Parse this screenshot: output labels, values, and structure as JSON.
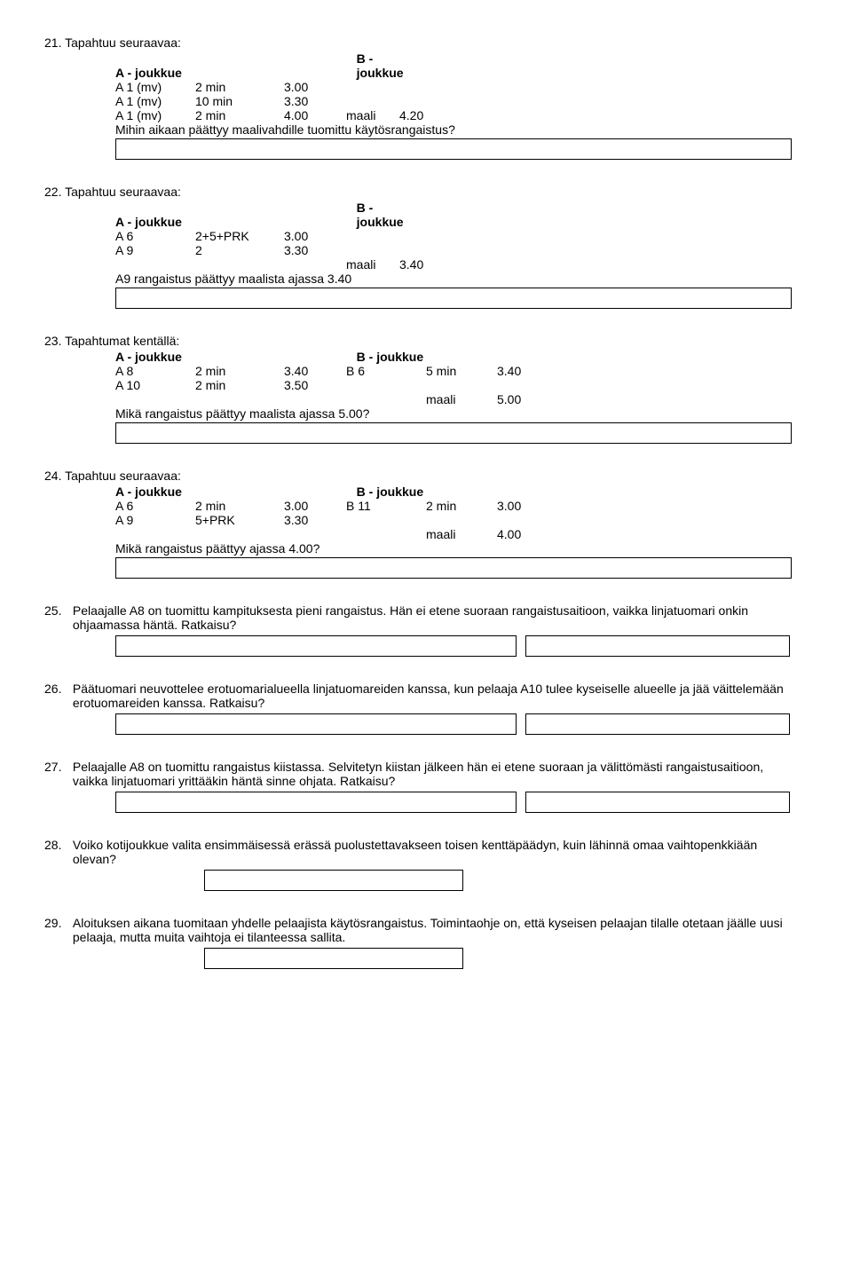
{
  "q21": {
    "num": "21.",
    "title": "Tapahtuu seuraavaa:",
    "headerA": "A - joukkue",
    "headerB": "B - joukkue",
    "rows": [
      {
        "a": "A 1 (mv)",
        "b": "2 min",
        "c": "3.00",
        "d": "",
        "e": ""
      },
      {
        "a": "A 1 (mv)",
        "b": "10 min",
        "c": "3.30",
        "d": "",
        "e": ""
      },
      {
        "a": "A 1 (mv)",
        "b": "2 min",
        "c": "4.00",
        "d": "maali",
        "e": "4.20"
      }
    ],
    "prompt": "Mihin aikaan päättyy maalivahdille tuomittu käytösrangaistus?"
  },
  "q22": {
    "num": "22.",
    "title": "Tapahtuu seuraavaa:",
    "headerA": "A - joukkue",
    "headerB": "B - joukkue",
    "rows": [
      {
        "a": "A 6",
        "b": "2+5+PRK",
        "c": "3.00",
        "d": "",
        "e": ""
      },
      {
        "a": "A 9",
        "b": "2",
        "c": "3.30",
        "d": "",
        "e": ""
      },
      {
        "a": "",
        "b": "",
        "c": "",
        "d": "maali",
        "e": "3.40"
      }
    ],
    "prompt": "A9 rangaistus päättyy maalista ajassa 3.40"
  },
  "q23": {
    "num": "23.",
    "title": "Tapahtumat kentällä:",
    "headerA": "A - joukkue",
    "headerB": "B - joukkue",
    "rows": [
      {
        "a": "A 8",
        "b": "2 min",
        "c": "3.40",
        "bn": "B 6",
        "bd": "5 min",
        "bv": "3.40"
      },
      {
        "a": "A 10",
        "b": "2 min",
        "c": "3.50",
        "bn": "",
        "bd": "",
        "bv": ""
      },
      {
        "a": "",
        "b": "",
        "c": "",
        "bn": "",
        "bd": "maali",
        "bv": "5.00"
      }
    ],
    "prompt": "Mikä rangaistus päättyy maalista ajassa 5.00?"
  },
  "q24": {
    "num": "24.",
    "title": "Tapahtuu seuraavaa:",
    "headerA": "A - joukkue",
    "headerB": "B - joukkue",
    "rows": [
      {
        "a": "A 6",
        "b": "2 min",
        "c": "3.00",
        "bn": "B 11",
        "bd": "2 min",
        "bv": "3.00"
      },
      {
        "a": "A 9",
        "b": "5+PRK",
        "c": "3.30",
        "bn": "",
        "bd": "",
        "bv": ""
      },
      {
        "a": "",
        "b": "",
        "c": "",
        "bn": "",
        "bd": "maali",
        "bv": "4.00"
      }
    ],
    "prompt": "Mikä rangaistus päättyy ajassa 4.00?"
  },
  "q25": {
    "num": "25.",
    "text": "Pelaajalle A8 on tuomittu kampituksesta pieni rangaistus. Hän ei etene suoraan rangaistusaitioon, vaikka linjatuomari onkin ohjaamassa häntä. Ratkaisu?"
  },
  "q26": {
    "num": "26.",
    "text": "Päätuomari neuvottelee erotuomarialueella linjatuomareiden kanssa, kun pelaaja A10 tulee kyseiselle alueelle ja jää väittelemään erotuomareiden kanssa. Ratkaisu?"
  },
  "q27": {
    "num": "27.",
    "text": "Pelaajalle A8 on tuomittu rangaistus kiistassa. Selvitetyn kiistan jälkeen hän ei etene suoraan ja välittömästi rangaistusaitioon, vaikka linjatuomari yrittääkin häntä sinne ohjata. Ratkaisu?"
  },
  "q28": {
    "num": "28.",
    "text": "Voiko kotijoukkue valita ensimmäisessä erässä puolustettavakseen toisen kenttäpäädyn, kuin lähinnä omaa vaihtopenkkiään olevan?"
  },
  "q29": {
    "num": "29.",
    "text": "Aloituksen aikana tuomitaan yhdelle pelaajista käytösrangaistus. Toimintaohje on, että kyseisen pelaajan tilalle otetaan jäälle uusi pelaaja, mutta muita vaihtoja ei tilanteessa sallita."
  }
}
